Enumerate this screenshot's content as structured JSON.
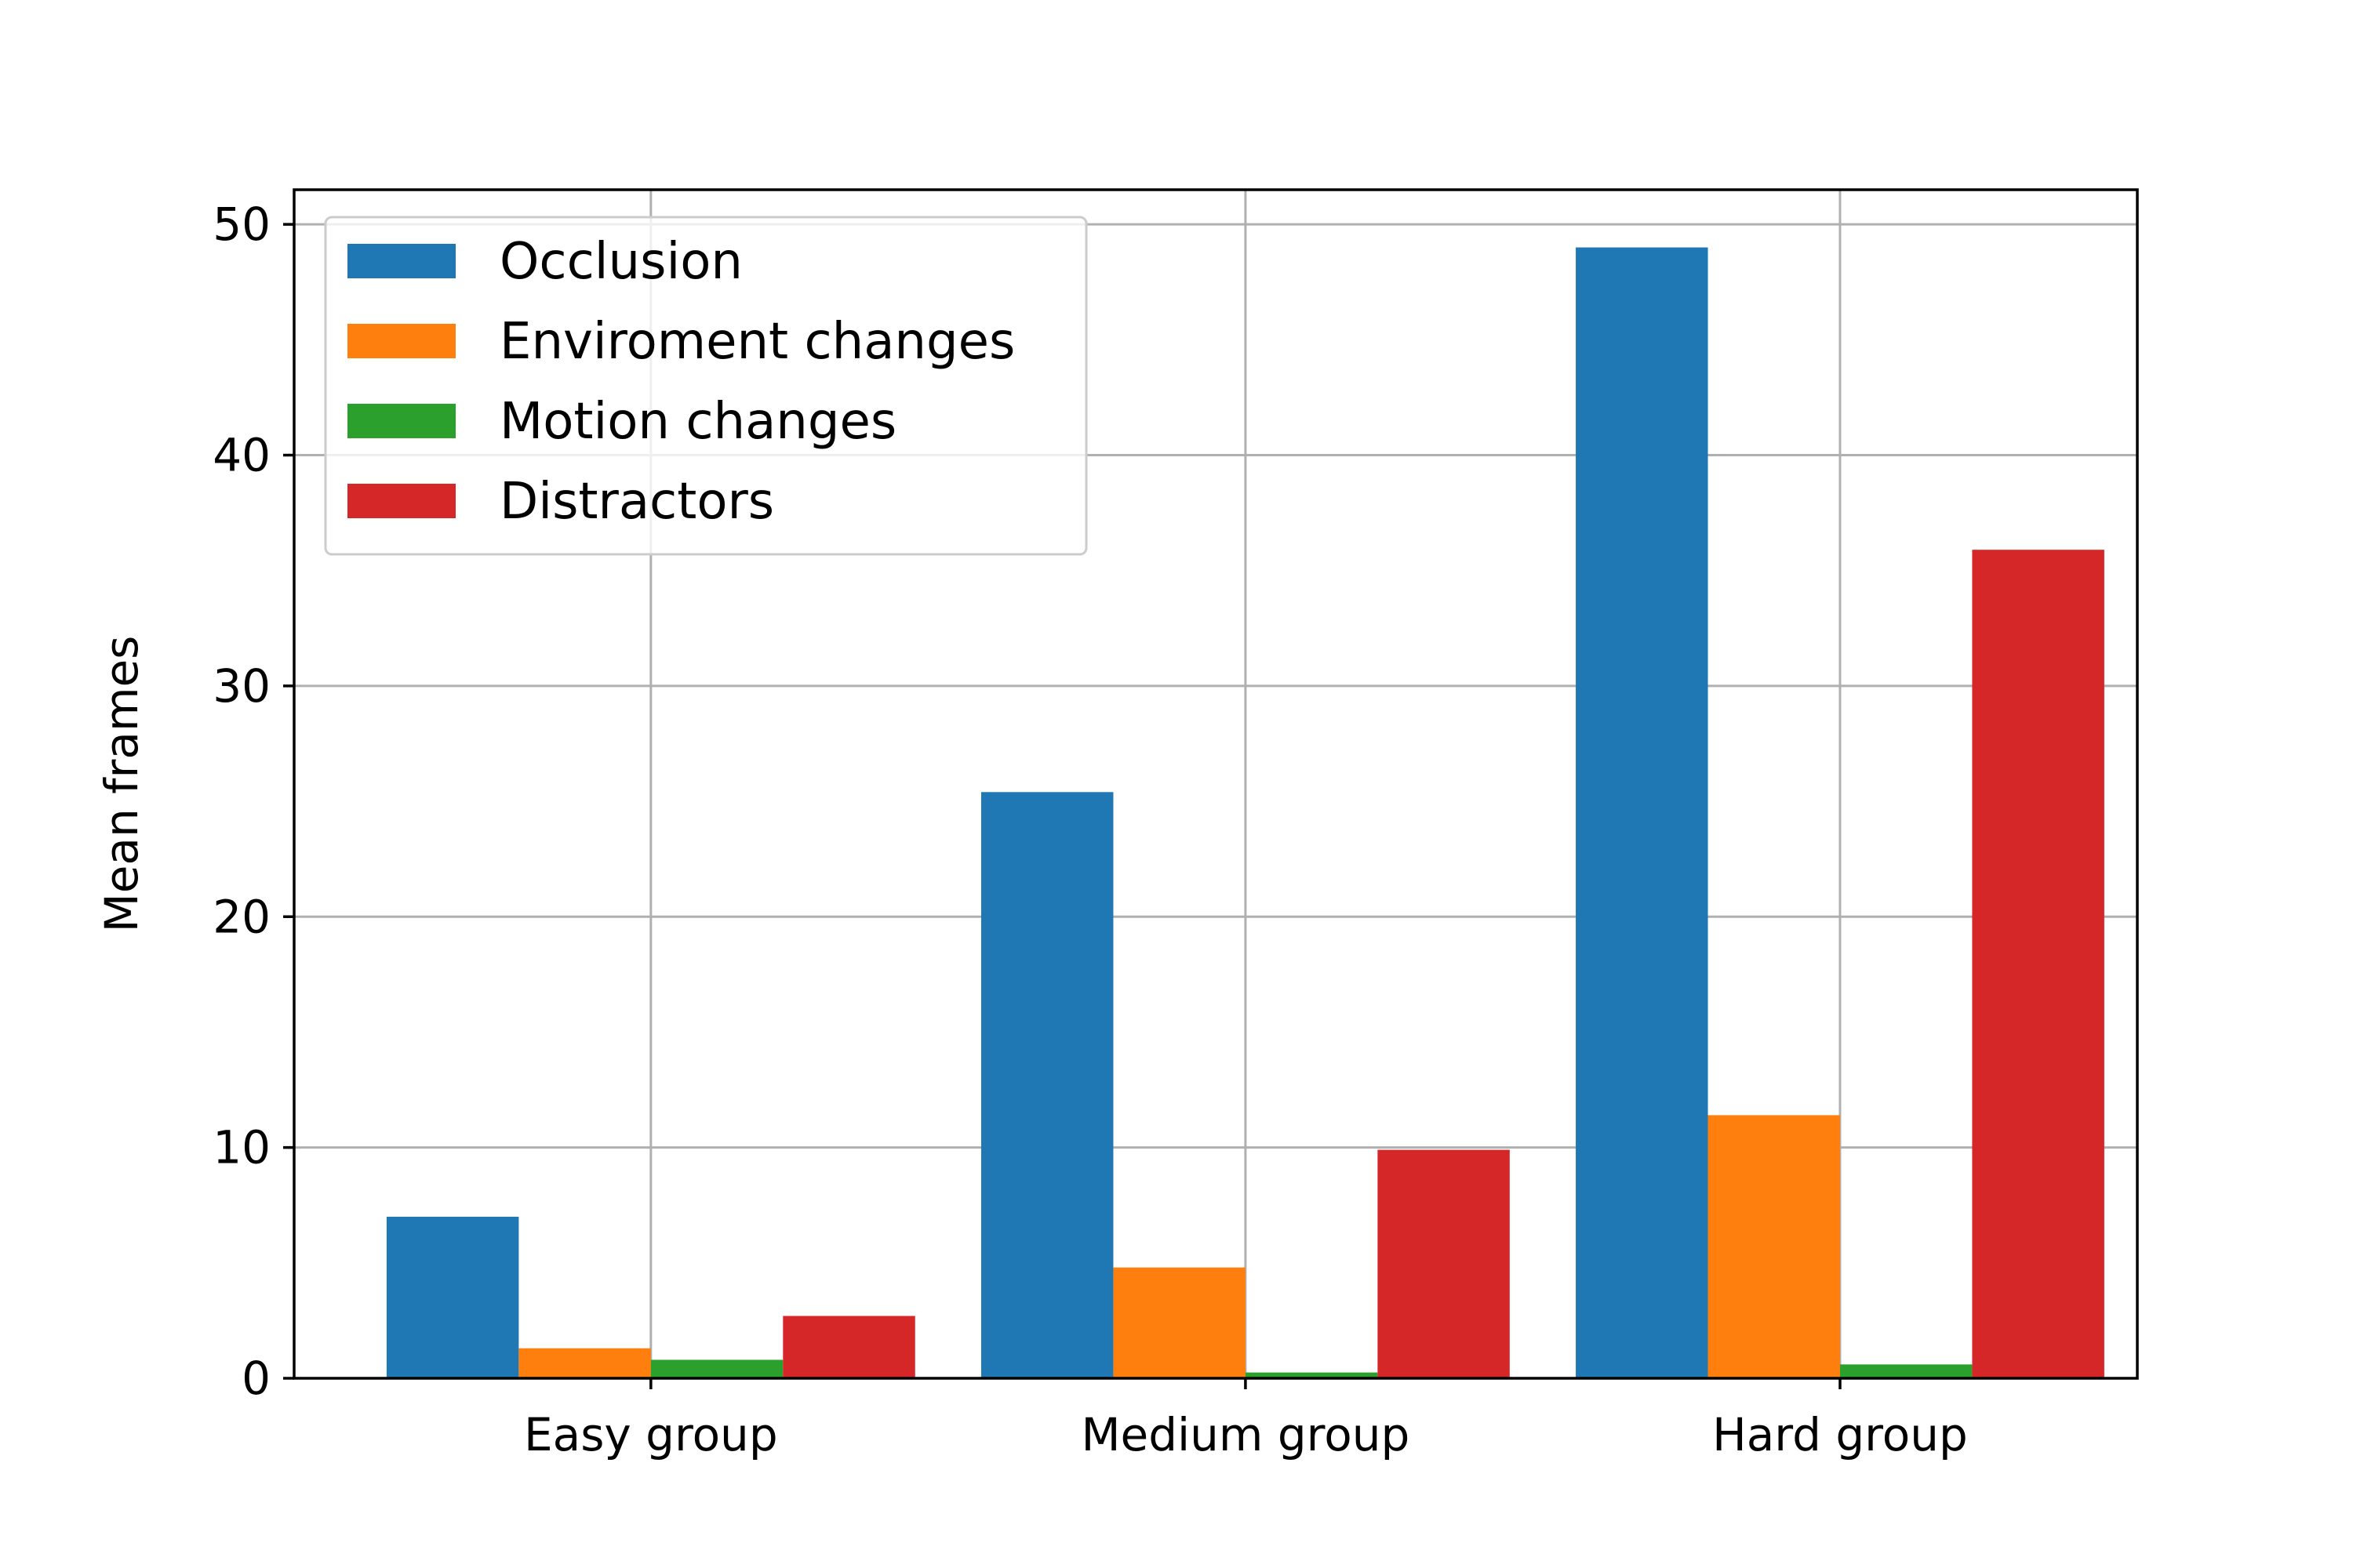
{
  "chart_data": {
    "type": "bar",
    "categories": [
      "Easy group",
      "Medium group",
      "Hard group"
    ],
    "series": [
      {
        "name": "Occlusion",
        "color": "#1f77b4",
        "values": [
          7.0,
          25.4,
          49.0
        ]
      },
      {
        "name": "Enviroment changes",
        "color": "#ff7f0e",
        "values": [
          1.3,
          4.8,
          11.4
        ]
      },
      {
        "name": "Motion changes",
        "color": "#2ca02c",
        "values": [
          0.8,
          0.25,
          0.6
        ]
      },
      {
        "name": "Distractors",
        "color": "#d62728",
        "values": [
          2.7,
          9.9,
          35.9
        ]
      }
    ],
    "title": "",
    "xlabel": "",
    "ylabel": "Mean frames",
    "ylim": [
      0,
      51.5
    ],
    "yticks": [
      0,
      10,
      20,
      30,
      40,
      50
    ],
    "grid": true,
    "legend_position": "top-left"
  }
}
